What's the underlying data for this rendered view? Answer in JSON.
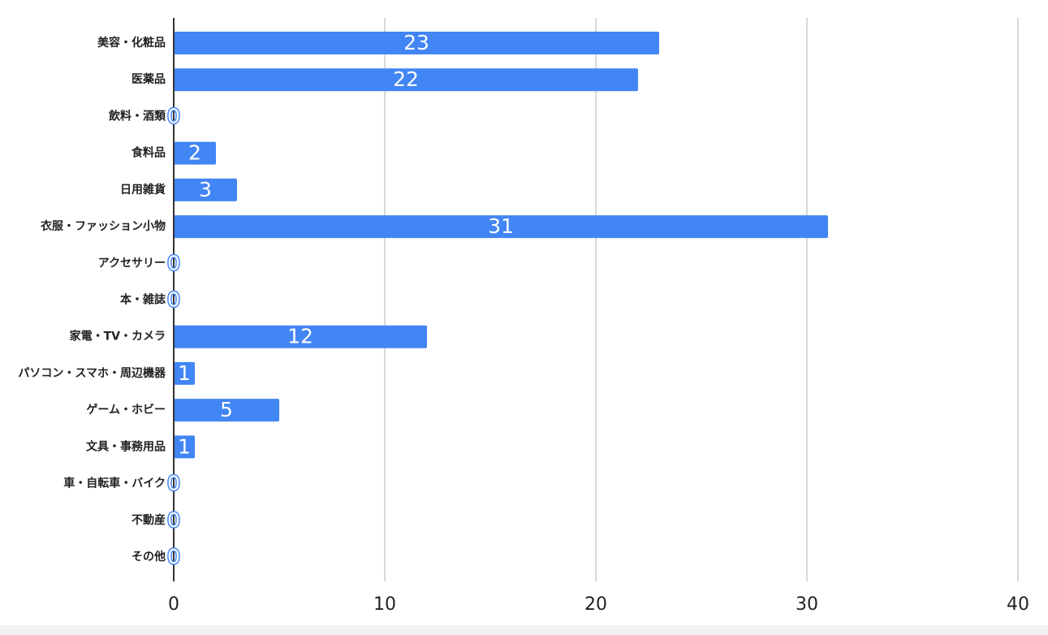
{
  "chart_data": {
    "type": "bar",
    "orientation": "horizontal",
    "categories": [
      "美容・化粧品",
      "医薬品",
      "飲料・酒類",
      "食料品",
      "日用雑貨",
      "衣服・ファッション小物",
      "アクセサリー",
      "本・雑誌",
      "家電・TV・カメラ",
      "パソコン・スマホ・周辺機器",
      "ゲーム・ホビー",
      "文具・事務用品",
      "車・自転車・バイク",
      "不動産",
      "その他"
    ],
    "values": [
      23,
      22,
      0,
      2,
      3,
      31,
      0,
      0,
      12,
      1,
      5,
      1,
      0,
      0,
      0
    ],
    "color": "#4285f4",
    "xlim": [
      0,
      40
    ],
    "xticks": [
      0,
      10,
      20,
      30,
      40
    ],
    "grid": true
  }
}
